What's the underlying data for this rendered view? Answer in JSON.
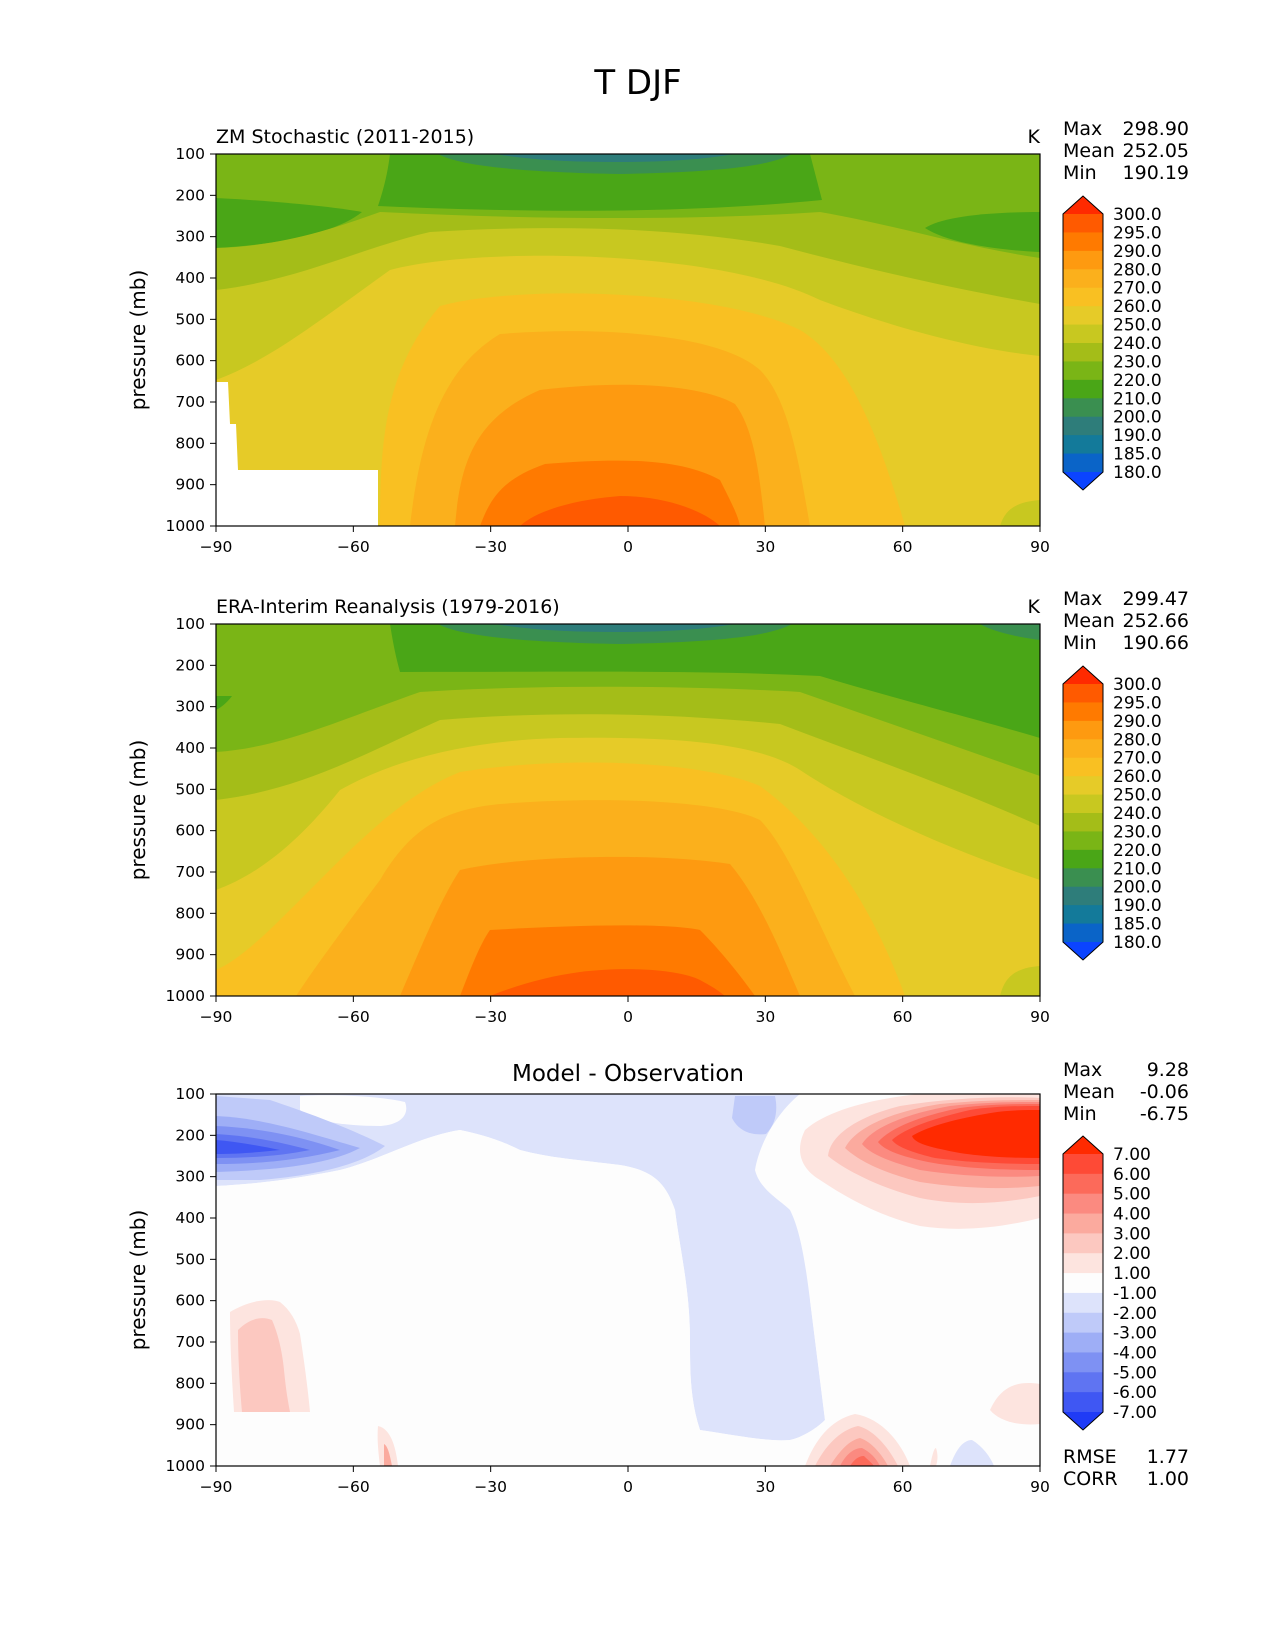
{
  "figure": {
    "title": "T DJF"
  },
  "chart_data": [
    {
      "type": "contour",
      "title": "ZM Stochastic (2011-2015)",
      "units": "K",
      "ylabel": "pressure (mb)",
      "xlabel": "",
      "xlim": [
        -90,
        90
      ],
      "ylim": [
        1000,
        100
      ],
      "x_ticks": [
        "−90",
        "−60",
        "−30",
        "0",
        "30",
        "60",
        "90"
      ],
      "y_ticks": [
        "100",
        "200",
        "300",
        "400",
        "500",
        "600",
        "700",
        "800",
        "900",
        "1000"
      ],
      "stats": [
        {
          "label": "Max",
          "value": "298.90"
        },
        {
          "label": "Mean",
          "value": "252.05"
        },
        {
          "label": "Min",
          "value": "190.19"
        }
      ],
      "colorbar": {
        "extend": "both",
        "levels": [
          "300.0",
          "295.0",
          "290.0",
          "280.0",
          "270.0",
          "260.0",
          "250.0",
          "240.0",
          "230.0",
          "220.0",
          "210.0",
          "200.0",
          "190.0",
          "185.0",
          "180.0"
        ],
        "colors": [
          "#ff2a00",
          "#ff5a00",
          "#ff7a00",
          "#fe9a10",
          "#fbb01c",
          "#f9c022",
          "#e6cb28",
          "#c8c820",
          "#a4bd18",
          "#7ab516",
          "#4aa617",
          "#3a8f50",
          "#2e7d7a",
          "#137a9a",
          "#0a64c8",
          "#0b44ff"
        ]
      },
      "approx_field": {
        "lat": [
          -90,
          -60,
          -30,
          0,
          30,
          60,
          90
        ],
        "plev": [
          100,
          300,
          500,
          700,
          900,
          1000
        ],
        "values_K": [
          [
            220,
            218,
            200,
            196,
            200,
            218,
            222
          ],
          [
            216,
            222,
            236,
            240,
            236,
            226,
            216
          ],
          [
            240,
            246,
            258,
            262,
            258,
            248,
            236
          ],
          [
            252,
            256,
            272,
            276,
            272,
            258,
            246
          ],
          [
            null,
            262,
            286,
            292,
            286,
            266,
            252
          ],
          [
            null,
            264,
            290,
            298,
            290,
            268,
            252
          ]
        ]
      }
    },
    {
      "type": "contour",
      "title": "ERA-Interim Reanalysis (1979-2016)",
      "units": "K",
      "ylabel": "pressure (mb)",
      "xlabel": "",
      "xlim": [
        -90,
        90
      ],
      "ylim": [
        1000,
        100
      ],
      "x_ticks": [
        "−90",
        "−60",
        "−30",
        "0",
        "30",
        "60",
        "90"
      ],
      "y_ticks": [
        "100",
        "200",
        "300",
        "400",
        "500",
        "600",
        "700",
        "800",
        "900",
        "1000"
      ],
      "stats": [
        {
          "label": "Max",
          "value": "299.47"
        },
        {
          "label": "Mean",
          "value": "252.66"
        },
        {
          "label": "Min",
          "value": "190.66"
        }
      ],
      "colorbar": {
        "extend": "both",
        "levels": [
          "300.0",
          "295.0",
          "290.0",
          "280.0",
          "270.0",
          "260.0",
          "250.0",
          "240.0",
          "230.0",
          "220.0",
          "210.0",
          "200.0",
          "190.0",
          "185.0",
          "180.0"
        ],
        "colors": [
          "#ff2a00",
          "#ff5a00",
          "#ff7a00",
          "#fe9a10",
          "#fbb01c",
          "#f9c022",
          "#e6cb28",
          "#c8c820",
          "#a4bd18",
          "#7ab516",
          "#4aa617",
          "#3a8f50",
          "#2e7d7a",
          "#137a9a",
          "#0a64c8",
          "#0b44ff"
        ]
      },
      "approx_field": {
        "lat": [
          -90,
          -60,
          -30,
          0,
          30,
          60,
          90
        ],
        "plev": [
          100,
          300,
          500,
          700,
          900,
          1000
        ],
        "values_K": [
          [
            220,
            220,
            200,
            196,
            200,
            216,
            214
          ],
          [
            218,
            224,
            236,
            240,
            236,
            222,
            216
          ],
          [
            240,
            246,
            258,
            262,
            258,
            244,
            236
          ],
          [
            252,
            256,
            272,
            276,
            272,
            256,
            244
          ],
          [
            260,
            264,
            286,
            292,
            286,
            264,
            252
          ],
          [
            262,
            266,
            290,
            299,
            290,
            268,
            252
          ]
        ]
      }
    },
    {
      "type": "contour",
      "title": "Model - Observation",
      "units": "",
      "ylabel": "pressure (mb)",
      "xlabel": "",
      "xlim": [
        -90,
        90
      ],
      "ylim": [
        1000,
        100
      ],
      "x_ticks": [
        "−90",
        "−60",
        "−30",
        "0",
        "30",
        "60",
        "90"
      ],
      "y_ticks": [
        "100",
        "200",
        "300",
        "400",
        "500",
        "600",
        "700",
        "800",
        "900",
        "1000"
      ],
      "stats": [
        {
          "label": "Max",
          "value": "9.28"
        },
        {
          "label": "Mean",
          "value": "-0.06"
        },
        {
          "label": "Min",
          "value": "-6.75"
        }
      ],
      "metrics": [
        {
          "label": "RMSE",
          "value": "1.77"
        },
        {
          "label": "CORR",
          "value": "1.00"
        }
      ],
      "colorbar": {
        "extend": "both",
        "levels": [
          "7.00",
          "6.00",
          "5.00",
          "4.00",
          "3.00",
          "2.00",
          "1.00",
          "-1.00",
          "-2.00",
          "-3.00",
          "-4.00",
          "-5.00",
          "-6.00",
          "-7.00"
        ],
        "colors": [
          "#ff2a00",
          "#fe4a36",
          "#fc6a5a",
          "#fb8a80",
          "#fbaa9e",
          "#fcc8c0",
          "#fde4df",
          "#fdfdfd",
          "#dde3fb",
          "#bfcaf9",
          "#9eaef6",
          "#7e91f3",
          "#5f74f2",
          "#3f57f3",
          "#1f3bf6"
        ]
      },
      "approx_field": {
        "lat": [
          -90,
          -60,
          -30,
          0,
          30,
          60,
          90
        ],
        "plev": [
          100,
          250,
          400,
          600,
          800,
          1000
        ],
        "values": [
          [
            -2,
            0,
            -1,
            -1,
            -2,
            4,
            8
          ],
          [
            -6,
            -3,
            -1,
            -1,
            0,
            5,
            8
          ],
          [
            0,
            0,
            0,
            -1,
            0,
            2,
            1
          ],
          [
            2,
            0,
            0,
            -1,
            -1,
            0,
            0
          ],
          [
            2,
            0,
            0,
            -1,
            -1,
            0,
            1
          ],
          [
            0,
            1,
            -1,
            0,
            0,
            3,
            -1
          ]
        ]
      }
    }
  ]
}
